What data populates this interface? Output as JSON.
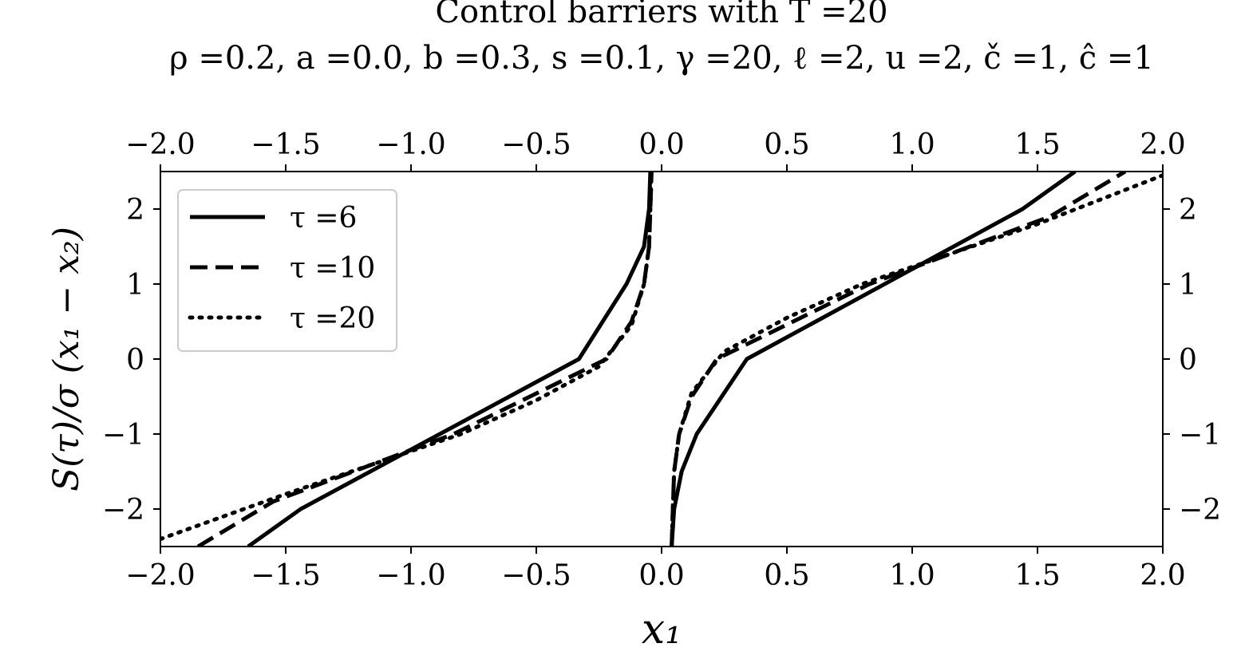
{
  "chart_data": {
    "type": "line",
    "title": "Control barriers with T =20",
    "subtitle": "ρ =0.2, a =0.0, b =0.3, s =0.1, γ =20, ℓ =2, u =2, č =1, ĉ =1",
    "xlabel": "x₁",
    "ylabel": "S(τ)/σ (x₁ − x₂)",
    "xlim": [
      -2.0,
      2.0
    ],
    "ylim": [
      -2.5,
      2.5
    ],
    "x_ticks": [
      "−2.0",
      "−1.5",
      "−1.0",
      "−0.5",
      "0.0",
      "0.5",
      "1.0",
      "1.5",
      "2.0"
    ],
    "y_ticks": [
      "−2",
      "−1",
      "0",
      "1",
      "2"
    ],
    "x_tick_values": [
      -2.0,
      -1.5,
      -1.0,
      -0.5,
      0.0,
      0.5,
      1.0,
      1.5,
      2.0
    ],
    "y_tick_values": [
      -2,
      -1,
      0,
      1,
      2
    ],
    "grid": false,
    "legend_position": "top-left",
    "series": [
      {
        "name": "τ =6",
        "style": "solid",
        "color": "#000000",
        "segments": [
          [
            [
              -1.65,
              -2.5
            ],
            [
              -1.44,
              -2.0
            ],
            [
              -0.33,
              0.0
            ],
            [
              -0.14,
              1.0
            ],
            [
              -0.07,
              1.5
            ],
            [
              -0.05,
              2.0
            ],
            [
              -0.045,
              2.5
            ]
          ],
          [
            [
              0.04,
              -2.5
            ],
            [
              0.05,
              -2.0
            ],
            [
              0.08,
              -1.5
            ],
            [
              0.14,
              -1.0
            ],
            [
              0.34,
              0.0
            ],
            [
              1.44,
              2.0
            ],
            [
              1.65,
              2.5
            ]
          ]
        ]
      },
      {
        "name": "τ =10",
        "style": "dashed",
        "color": "#000000",
        "segments": [
          [
            [
              -1.85,
              -2.5
            ],
            [
              -1.55,
              -1.9
            ],
            [
              -0.83,
              -1.0
            ],
            [
              -0.22,
              0.0
            ],
            [
              -0.12,
              0.5
            ],
            [
              -0.07,
              1.0
            ],
            [
              -0.05,
              1.5
            ],
            [
              -0.045,
              2.0
            ],
            [
              -0.04,
              2.5
            ]
          ],
          [
            [
              0.04,
              -2.5
            ],
            [
              0.045,
              -2.0
            ],
            [
              0.05,
              -1.5
            ],
            [
              0.07,
              -1.0
            ],
            [
              0.12,
              -0.5
            ],
            [
              0.22,
              0.0
            ],
            [
              0.83,
              1.0
            ],
            [
              1.55,
              1.9
            ],
            [
              1.85,
              2.5
            ]
          ]
        ]
      },
      {
        "name": "τ =20",
        "style": "dotted",
        "color": "#000000",
        "segments": [
          [
            [
              -2.0,
              -2.4
            ],
            [
              -1.5,
              -1.8
            ],
            [
              -0.8,
              -1.0
            ],
            [
              -0.5,
              -0.55
            ],
            [
              -0.25,
              -0.1
            ],
            [
              -0.12,
              0.45
            ],
            [
              -0.07,
              1.0
            ],
            [
              -0.05,
              1.5
            ],
            [
              -0.045,
              2.0
            ],
            [
              -0.04,
              2.5
            ]
          ],
          [
            [
              0.04,
              -2.5
            ],
            [
              0.045,
              -2.0
            ],
            [
              0.05,
              -1.5
            ],
            [
              0.07,
              -1.0
            ],
            [
              0.12,
              -0.45
            ],
            [
              0.25,
              0.1
            ],
            [
              0.5,
              0.55
            ],
            [
              0.8,
              1.0
            ],
            [
              1.5,
              1.8
            ],
            [
              2.0,
              2.45
            ]
          ]
        ]
      }
    ]
  }
}
